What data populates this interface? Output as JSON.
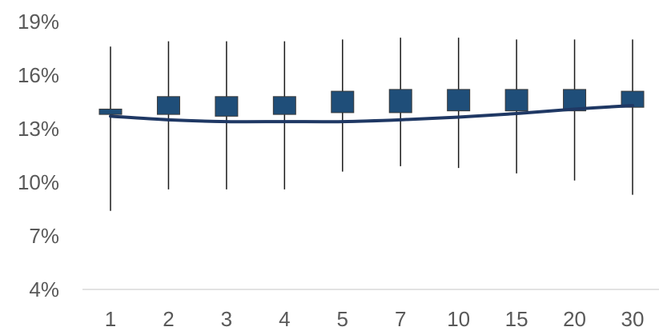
{
  "chart_data": {
    "type": "candlestick",
    "title": "",
    "xlabel": "",
    "ylabel": "",
    "ylim": [
      4,
      19
    ],
    "y_ticks": [
      {
        "value": 4,
        "label": "4%"
      },
      {
        "value": 7,
        "label": "7%"
      },
      {
        "value": 10,
        "label": "10%"
      },
      {
        "value": 13,
        "label": "13%"
      },
      {
        "value": 16,
        "label": "16%"
      },
      {
        "value": 19,
        "label": "19%"
      }
    ],
    "categories": [
      "1",
      "2",
      "3",
      "4",
      "5",
      "7",
      "10",
      "15",
      "20",
      "30"
    ],
    "series": [
      {
        "high": [
          17.6,
          17.9,
          17.9,
          17.9,
          18.0,
          18.1,
          18.1,
          18.0,
          18.0,
          18.0
        ],
        "low": [
          8.4,
          9.6,
          9.6,
          9.6,
          10.6,
          10.9,
          10.8,
          10.5,
          10.1,
          9.3
        ],
        "open": [
          13.8,
          13.8,
          13.7,
          13.8,
          13.9,
          13.9,
          14.0,
          14.0,
          14.0,
          14.2
        ],
        "close": [
          14.1,
          14.8,
          14.8,
          14.8,
          15.1,
          15.2,
          15.2,
          15.2,
          15.2,
          15.1
        ]
      }
    ],
    "trendline": [
      13.7,
      13.5,
      13.4,
      13.4,
      13.4,
      13.5,
      13.65,
      13.85,
      14.1,
      14.3
    ],
    "colors": {
      "box_fill": "#1f4e79",
      "box_stroke": "#3a3a3a",
      "whisker": "#1a1a1a",
      "trendline": "#1f3864",
      "axis": "#d9d9d9",
      "tick_text": "#595959"
    },
    "grid": false
  }
}
